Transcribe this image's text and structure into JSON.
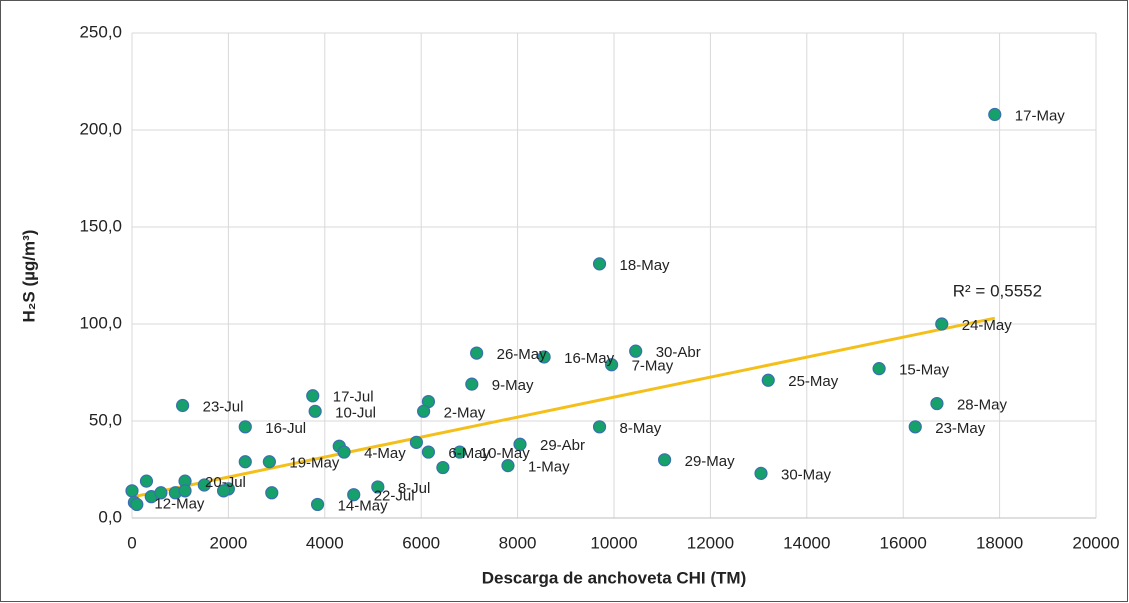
{
  "chart_data": {
    "type": "scatter",
    "x_label": "Descarga de anchoveta CHI (TM)",
    "y_label": "H₂S (µg/m³)",
    "color": "#16a06a",
    "edge_color": "#3a6fb0",
    "grid": true,
    "xlim": [
      0,
      20000
    ],
    "xticks": [
      0,
      2000,
      4000,
      6000,
      8000,
      10000,
      12000,
      14000,
      16000,
      18000,
      20000
    ],
    "ylim": [
      0,
      250
    ],
    "yticks": [
      {
        "value": 0,
        "label": "0,0"
      },
      {
        "value": 50,
        "label": "50,0"
      },
      {
        "value": 100,
        "label": "100,0"
      },
      {
        "value": 150,
        "label": "150,0"
      },
      {
        "value": 200,
        "label": "200,0"
      },
      {
        "value": 250,
        "label": "250,0"
      }
    ],
    "x": [
      17900,
      9700,
      16800,
      7150,
      8550,
      10450,
      9950,
      15500,
      13200,
      7050,
      3750,
      6150,
      6050,
      16700,
      1050,
      3800,
      2350,
      9700,
      16250,
      5900,
      8050,
      4300,
      4400,
      6150,
      6800,
      11050,
      7800,
      6450,
      13050,
      2350,
      2850,
      2000,
      1100,
      1500,
      1900,
      5100,
      4600,
      2900,
      3850,
      300,
      0,
      50,
      100,
      400,
      600,
      900,
      1100
    ],
    "values": [
      208,
      131,
      100,
      85,
      83,
      86,
      79,
      77,
      71,
      69,
      63,
      60,
      55,
      59,
      58,
      55,
      47,
      47,
      47,
      39,
      38,
      37,
      34,
      34,
      34,
      30,
      27,
      26,
      23,
      29,
      29,
      15,
      19,
      17,
      14,
      16,
      12,
      13,
      7,
      19,
      14,
      8,
      7,
      11,
      13,
      13,
      14
    ],
    "labels": [
      "17-May",
      "18-May",
      "24-May",
      "26-May",
      "16-May",
      "30-Abr",
      "7-May",
      "15-May",
      "25-May",
      "9-May",
      "17-Jul",
      null,
      "2-May",
      "28-May",
      "23-Jul",
      "10-Jul",
      "16-Jul",
      "8-May",
      "23-May",
      null,
      "29-Abr",
      null,
      "4-May",
      "6-May",
      "10-May",
      "29-May",
      "1-May",
      null,
      "30-May",
      null,
      "19-May",
      null,
      "20-Jul",
      null,
      null,
      "8-Jul",
      "22-Jul",
      null,
      "14-May",
      null,
      null,
      "12-May",
      null,
      null,
      null,
      null,
      null
    ],
    "trendline": {
      "label": "R² = 0,5552",
      "color": "#f5bf1a",
      "x": [
        0,
        17900
      ],
      "values": [
        10.8,
        103
      ]
    }
  }
}
